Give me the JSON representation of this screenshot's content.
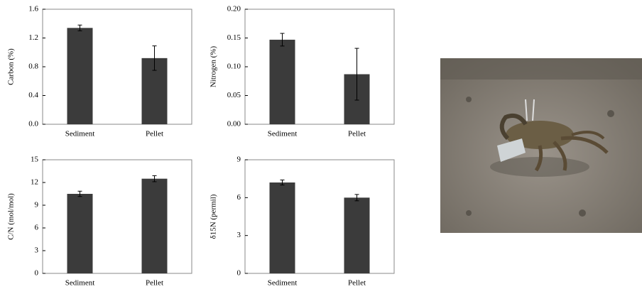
{
  "chart_data": [
    {
      "type": "bar",
      "ylabel": "Carbon (%)",
      "categories": [
        "Sediment",
        "Pellet"
      ],
      "values": [
        1.34,
        0.92
      ],
      "errors": [
        0.04,
        0.17
      ],
      "color": "#3b3b3b",
      "ylim": [
        0,
        1.6
      ],
      "yticks": [
        {
          "value": 0,
          "label": "0.0"
        },
        0.4,
        0.8,
        1.2,
        1.6
      ]
    },
    {
      "type": "bar",
      "ylabel": "Nitrogen (%)",
      "categories": [
        "Sediment",
        "Pellet"
      ],
      "values": [
        0.147,
        0.087
      ],
      "errors": [
        0.011,
        0.045
      ],
      "color": "#3b3b3b",
      "ylim": [
        0,
        0.2
      ],
      "yticks": [
        {
          "value": 0,
          "label": "0.00"
        },
        {
          "value": 0.05,
          "label": "0.05"
        },
        {
          "value": 0.1,
          "label": "0.10"
        },
        {
          "value": 0.15,
          "label": "0.15"
        },
        {
          "value": 0.2,
          "label": "0.20"
        }
      ]
    },
    {
      "type": "bar",
      "ylabel": "C/N (mol/mol)",
      "categories": [
        "Sediment",
        "Pellet"
      ],
      "values": [
        10.5,
        12.5
      ],
      "errors": [
        0.35,
        0.4
      ],
      "color": "#3b3b3b",
      "ylim": [
        0,
        15
      ],
      "yticks": [
        0,
        3,
        6,
        9,
        12,
        15
      ]
    },
    {
      "type": "bar",
      "ylabel": "δ15N (permil)",
      "categories": [
        "Sediment",
        "Pellet"
      ],
      "values": [
        7.2,
        6.0
      ],
      "errors": [
        0.2,
        0.25
      ],
      "color": "#3b3b3b",
      "ylim": [
        0,
        9
      ],
      "yticks": [
        0,
        3,
        6,
        9
      ]
    }
  ]
}
